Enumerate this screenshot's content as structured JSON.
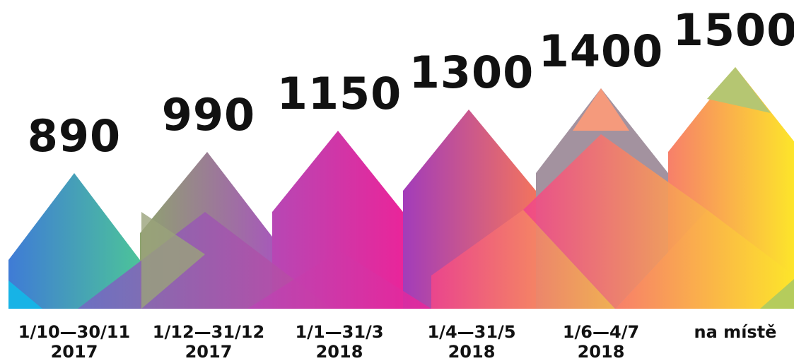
{
  "tiers": [
    {
      "price": 890,
      "period": [
        "1/10—30/11",
        "2017"
      ]
    },
    {
      "price": 990,
      "period": [
        "1/12—31/12",
        "2017"
      ]
    },
    {
      "price": 1150,
      "period": [
        "1/1—31/3",
        "2018"
      ]
    },
    {
      "price": 1300,
      "period": [
        "1/4—31/5",
        "2018"
      ]
    },
    {
      "price": 1400,
      "period": [
        "1/6—4/7",
        "2018"
      ]
    },
    {
      "price": 1500,
      "period": [
        "na místě"
      ]
    }
  ]
}
